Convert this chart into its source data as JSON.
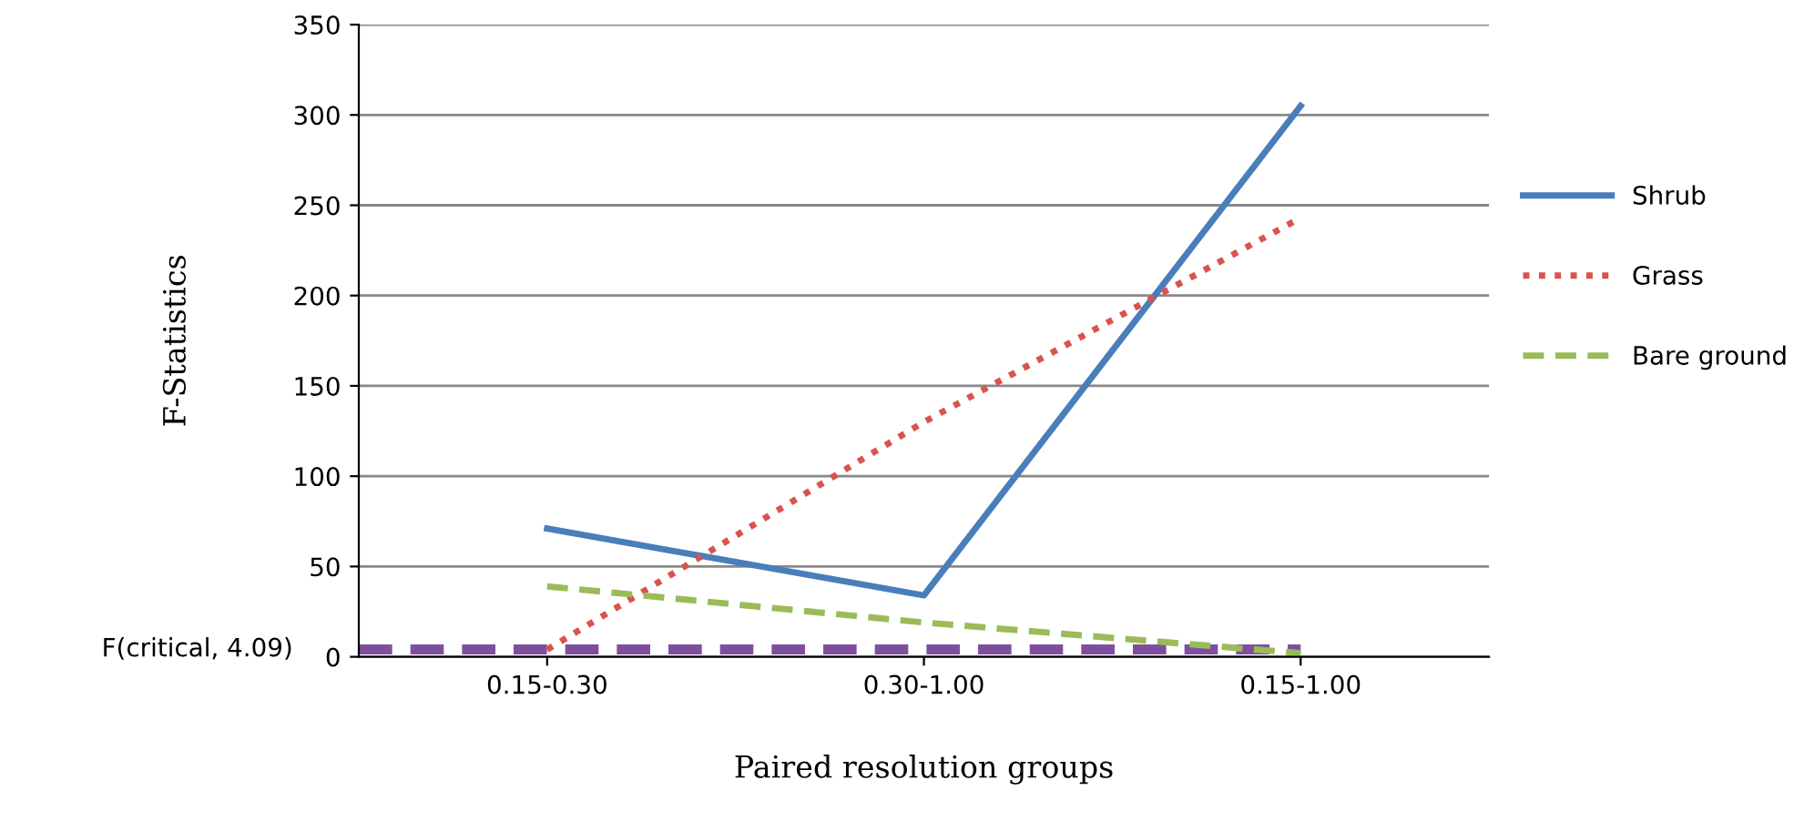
{
  "chart_data": {
    "type": "line",
    "xlabel": "Paired resolution groups",
    "ylabel": "F-Statistics",
    "categories": [
      "0.15-0.30",
      "0.30-1.00",
      "0.15-1.00"
    ],
    "series": [
      {
        "name": "Shrub",
        "color": "#4a7ebb",
        "values": [
          71,
          34,
          305
        ],
        "line_style": "solid"
      },
      {
        "name": "Grass",
        "color": "#d9534f",
        "values": [
          4,
          130,
          243
        ],
        "line_style": "dotted"
      },
      {
        "name": "Bare ground",
        "color": "#9bbb59",
        "values": [
          39,
          19,
          2
        ],
        "line_style": "dashed"
      }
    ],
    "ref_lines": [
      {
        "axis": "y",
        "value": 4.09,
        "label": "F(critical, 4.09)",
        "color": "#7f4f9f",
        "line_style": "dashed"
      }
    ],
    "ylim": [
      0,
      350
    ],
    "yticks": [
      0,
      50,
      100,
      150,
      200,
      250,
      300,
      350
    ],
    "grid": "y",
    "legend": "right",
    "marker": "none"
  }
}
